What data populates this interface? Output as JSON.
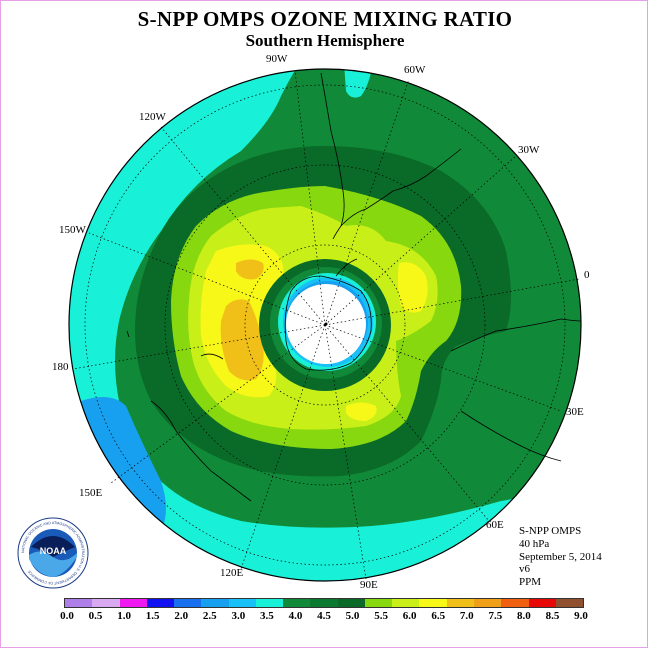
{
  "header": {
    "title": "S-NPP OMPS OZONE MIXING RATIO",
    "subtitle": "Southern Hemisphere"
  },
  "longitude_labels": [
    {
      "id": "lon-90w",
      "text": "90W"
    },
    {
      "id": "lon-60w",
      "text": "60W"
    },
    {
      "id": "lon-120w",
      "text": "120W"
    },
    {
      "id": "lon-30w",
      "text": "30W"
    },
    {
      "id": "lon-150w",
      "text": "150W"
    },
    {
      "id": "lon-0",
      "text": "0"
    },
    {
      "id": "lon-180",
      "text": "180"
    },
    {
      "id": "lon-30e",
      "text": "30E"
    },
    {
      "id": "lon-150e",
      "text": "150E"
    },
    {
      "id": "lon-60e",
      "text": "60E"
    },
    {
      "id": "lon-120e",
      "text": "120E"
    },
    {
      "id": "lon-90e",
      "text": "90E"
    }
  ],
  "info": {
    "instrument": "S-NPP OMPS",
    "level": "40 hPa",
    "date": "September 5, 2014",
    "version": "v6",
    "units": "PPM"
  },
  "logo": {
    "text": "NOAA",
    "ring_text": "NATIONAL OCEANIC AND ATMOSPHERIC ADMINISTRATION U.S. DEPARTMENT OF COMMERCE"
  },
  "colorbar": {
    "colors": [
      "#b07ee8",
      "#d8a8f0",
      "#f018f0",
      "#1010f0",
      "#1870f0",
      "#18a0f0",
      "#18c0f8",
      "#18f0d8",
      "#108a38",
      "#0a7a30",
      "#0a6a28",
      "#88d810",
      "#c8f018",
      "#f8f818",
      "#f0c018",
      "#f0a018",
      "#f06010",
      "#e80808",
      "#905030"
    ],
    "labels": [
      "0.0",
      "0.5",
      "1.0",
      "1.5",
      "2.0",
      "2.5",
      "3.0",
      "3.5",
      "4.0",
      "4.5",
      "5.0",
      "5.5",
      "6.0",
      "6.5",
      "7.0",
      "7.5",
      "8.0",
      "8.5",
      "9.0"
    ]
  }
}
